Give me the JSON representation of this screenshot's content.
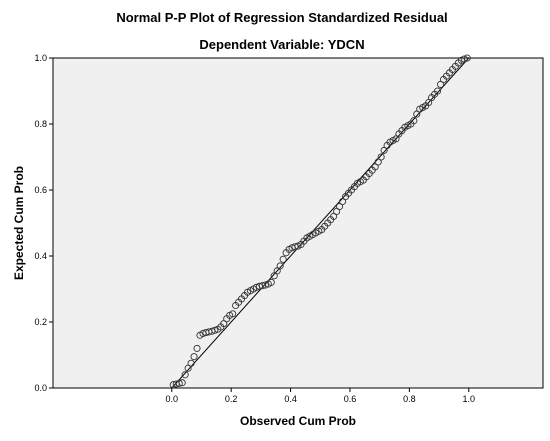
{
  "chart_data": {
    "type": "scatter",
    "title": "Normal P-P Plot of Regression Standardized Residual",
    "subtitle": "Dependent Variable: YDCN",
    "xlabel": "Observed Cum Prob",
    "ylabel": "Expected Cum Prob",
    "xlim": [
      -0.4,
      1.25
    ],
    "ylim": [
      0.0,
      1.0
    ],
    "x_ticks": [
      "0.0",
      "0.2",
      "0.4",
      "0.6",
      "0.8",
      "1.0"
    ],
    "y_ticks": [
      "0.0",
      "0.2",
      "0.4",
      "0.6",
      "0.8",
      "1.0"
    ],
    "grid": false,
    "reference_line": {
      "from": [
        0.0,
        0.0
      ],
      "to": [
        1.0,
        1.0
      ]
    },
    "points": [
      [
        0.005,
        0.01
      ],
      [
        0.015,
        0.012
      ],
      [
        0.025,
        0.014
      ],
      [
        0.035,
        0.016
      ],
      [
        0.045,
        0.04
      ],
      [
        0.055,
        0.06
      ],
      [
        0.065,
        0.075
      ],
      [
        0.075,
        0.095
      ],
      [
        0.085,
        0.12
      ],
      [
        0.095,
        0.16
      ],
      [
        0.105,
        0.165
      ],
      [
        0.115,
        0.168
      ],
      [
        0.125,
        0.17
      ],
      [
        0.135,
        0.172
      ],
      [
        0.145,
        0.175
      ],
      [
        0.155,
        0.178
      ],
      [
        0.165,
        0.185
      ],
      [
        0.175,
        0.195
      ],
      [
        0.185,
        0.21
      ],
      [
        0.195,
        0.22
      ],
      [
        0.205,
        0.225
      ],
      [
        0.215,
        0.25
      ],
      [
        0.225,
        0.26
      ],
      [
        0.235,
        0.27
      ],
      [
        0.245,
        0.28
      ],
      [
        0.255,
        0.29
      ],
      [
        0.265,
        0.295
      ],
      [
        0.275,
        0.3
      ],
      [
        0.285,
        0.305
      ],
      [
        0.295,
        0.308
      ],
      [
        0.305,
        0.31
      ],
      [
        0.315,
        0.312
      ],
      [
        0.325,
        0.315
      ],
      [
        0.335,
        0.32
      ],
      [
        0.345,
        0.34
      ],
      [
        0.355,
        0.355
      ],
      [
        0.365,
        0.37
      ],
      [
        0.375,
        0.39
      ],
      [
        0.385,
        0.41
      ],
      [
        0.395,
        0.42
      ],
      [
        0.405,
        0.425
      ],
      [
        0.415,
        0.428
      ],
      [
        0.425,
        0.43
      ],
      [
        0.435,
        0.435
      ],
      [
        0.445,
        0.445
      ],
      [
        0.455,
        0.455
      ],
      [
        0.465,
        0.46
      ],
      [
        0.475,
        0.465
      ],
      [
        0.485,
        0.47
      ],
      [
        0.495,
        0.475
      ],
      [
        0.505,
        0.48
      ],
      [
        0.515,
        0.49
      ],
      [
        0.525,
        0.5
      ],
      [
        0.535,
        0.51
      ],
      [
        0.545,
        0.52
      ],
      [
        0.555,
        0.535
      ],
      [
        0.565,
        0.55
      ],
      [
        0.575,
        0.565
      ],
      [
        0.585,
        0.58
      ],
      [
        0.595,
        0.59
      ],
      [
        0.605,
        0.6
      ],
      [
        0.615,
        0.61
      ],
      [
        0.625,
        0.62
      ],
      [
        0.635,
        0.625
      ],
      [
        0.645,
        0.63
      ],
      [
        0.655,
        0.64
      ],
      [
        0.665,
        0.65
      ],
      [
        0.675,
        0.66
      ],
      [
        0.685,
        0.67
      ],
      [
        0.695,
        0.685
      ],
      [
        0.705,
        0.7
      ],
      [
        0.715,
        0.72
      ],
      [
        0.725,
        0.735
      ],
      [
        0.735,
        0.745
      ],
      [
        0.745,
        0.75
      ],
      [
        0.755,
        0.755
      ],
      [
        0.765,
        0.77
      ],
      [
        0.775,
        0.78
      ],
      [
        0.785,
        0.79
      ],
      [
        0.795,
        0.795
      ],
      [
        0.805,
        0.8
      ],
      [
        0.815,
        0.81
      ],
      [
        0.825,
        0.83
      ],
      [
        0.835,
        0.845
      ],
      [
        0.845,
        0.85
      ],
      [
        0.855,
        0.855
      ],
      [
        0.865,
        0.865
      ],
      [
        0.875,
        0.88
      ],
      [
        0.885,
        0.89
      ],
      [
        0.895,
        0.9
      ],
      [
        0.905,
        0.92
      ],
      [
        0.915,
        0.935
      ],
      [
        0.925,
        0.945
      ],
      [
        0.935,
        0.955
      ],
      [
        0.945,
        0.965
      ],
      [
        0.955,
        0.975
      ],
      [
        0.965,
        0.985
      ],
      [
        0.975,
        0.993
      ],
      [
        0.985,
        0.997
      ],
      [
        0.995,
        1.0
      ]
    ]
  }
}
